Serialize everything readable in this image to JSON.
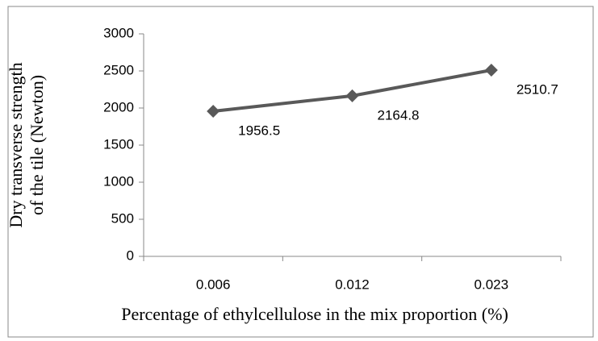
{
  "chart_data": {
    "type": "line",
    "x_label": "Percentage of ethylcellulose in the mix proportion (%)",
    "y_label_lines": [
      "Dry transverse strength",
      "of the tile (Newton)"
    ],
    "categories": [
      "0.006",
      "0.012",
      "0.023"
    ],
    "series": [
      {
        "name": "Dry transverse strength",
        "color": "#595959",
        "values": [
          1956.5,
          2164.8,
          2510.7
        ]
      }
    ],
    "ylim": [
      0,
      3000
    ],
    "yticks": [
      0,
      500,
      1000,
      1500,
      2000,
      2500,
      3000
    ],
    "marker": "diamond",
    "data_labels": true
  }
}
